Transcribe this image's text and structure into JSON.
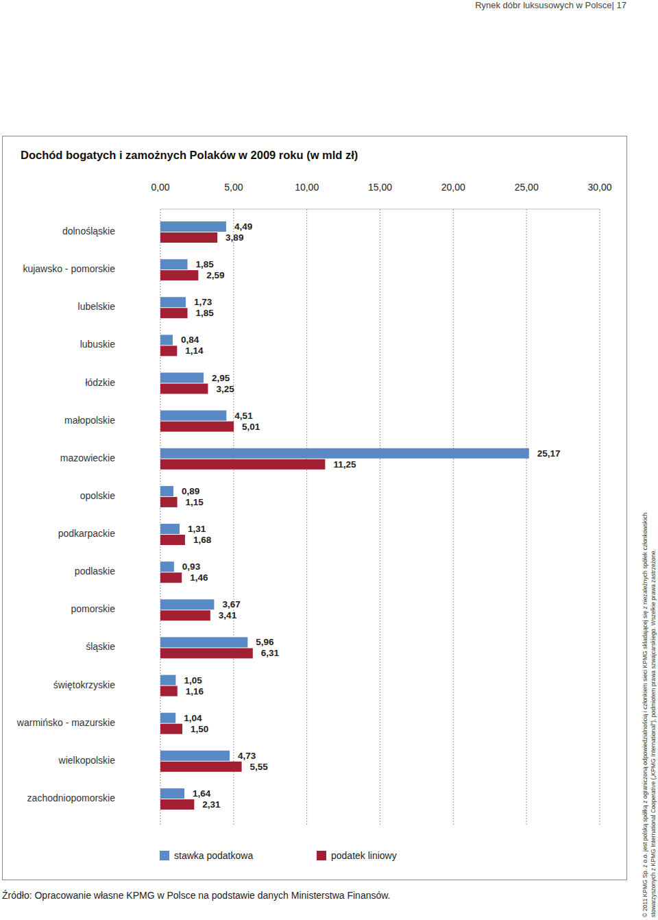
{
  "chart_data": {
    "type": "bar",
    "orientation": "horizontal",
    "title": "Dochód bogatych i zamożnych Polaków w 2009 roku (w mld zł)",
    "categories": [
      "dolnośląskie",
      "kujawsko - pomorskie",
      "lubelskie",
      "lubuskie",
      "łódzkie",
      "małopolskie",
      "mazowieckie",
      "opolskie",
      "podkarpackie",
      "podlaskie",
      "pomorskie",
      "śląskie",
      "świętokrzyskie",
      "warmińsko - mazurskie",
      "wielkopolskie",
      "zachodniopomorskie"
    ],
    "series": [
      {
        "name": "stawka podatkowa",
        "color": "#5a8ac6",
        "values": [
          4.49,
          1.85,
          1.73,
          0.84,
          2.95,
          4.51,
          25.17,
          0.89,
          1.31,
          0.93,
          3.67,
          5.96,
          1.05,
          1.04,
          4.73,
          1.64
        ],
        "value_labels": [
          "4,49",
          "1,85",
          "1,73",
          "0,84",
          "2,95",
          "4,51",
          "25,17",
          "0,89",
          "1,31",
          "0,93",
          "3,67",
          "5,96",
          "1,05",
          "1,04",
          "4,73",
          "1,64"
        ]
      },
      {
        "name": "podatek liniowy",
        "color": "#a31f34",
        "values": [
          3.89,
          2.59,
          1.85,
          1.14,
          3.25,
          5.01,
          11.25,
          1.15,
          1.68,
          1.46,
          3.41,
          6.31,
          1.16,
          1.5,
          5.55,
          2.31
        ],
        "value_labels": [
          "3,89",
          "2,59",
          "1,85",
          "1,14",
          "3,25",
          "5,01",
          "11,25",
          "1,15",
          "1,68",
          "1,46",
          "3,41",
          "6,31",
          "1,16",
          "1,50",
          "5,55",
          "2,31"
        ]
      }
    ],
    "xlim": [
      0,
      30
    ],
    "xticks": [
      {
        "value": 0,
        "label": "0,00"
      },
      {
        "value": 5,
        "label": "5,00"
      },
      {
        "value": 10,
        "label": "10,00"
      },
      {
        "value": 15,
        "label": "15,00"
      },
      {
        "value": 20,
        "label": "20,00"
      },
      {
        "value": 25,
        "label": "25,00"
      },
      {
        "value": 30,
        "label": "30,00"
      }
    ],
    "grid": true,
    "legend": "bottom",
    "data_labels": true
  },
  "page": {
    "header": "Rynek dóbr luksusowych w Polsce| 17",
    "source": "Źródło: Opracowanie własne KPMG w Polsce na podstawie danych Ministerstwa Finansów.",
    "copyright": [
      "© 2011 KPMG Sp. z o.o. jest polską spółką z ograniczoną odpowiedzialnością i członkiem sieci KPMG składającej się z niezależnych spółek członkowskich",
      "stowarzyszonych z KPMG International Cooperative („KPMG International”), podmiotem prawa szwajcarskiego. Wszelkie prawa zastrzeżone."
    ]
  }
}
